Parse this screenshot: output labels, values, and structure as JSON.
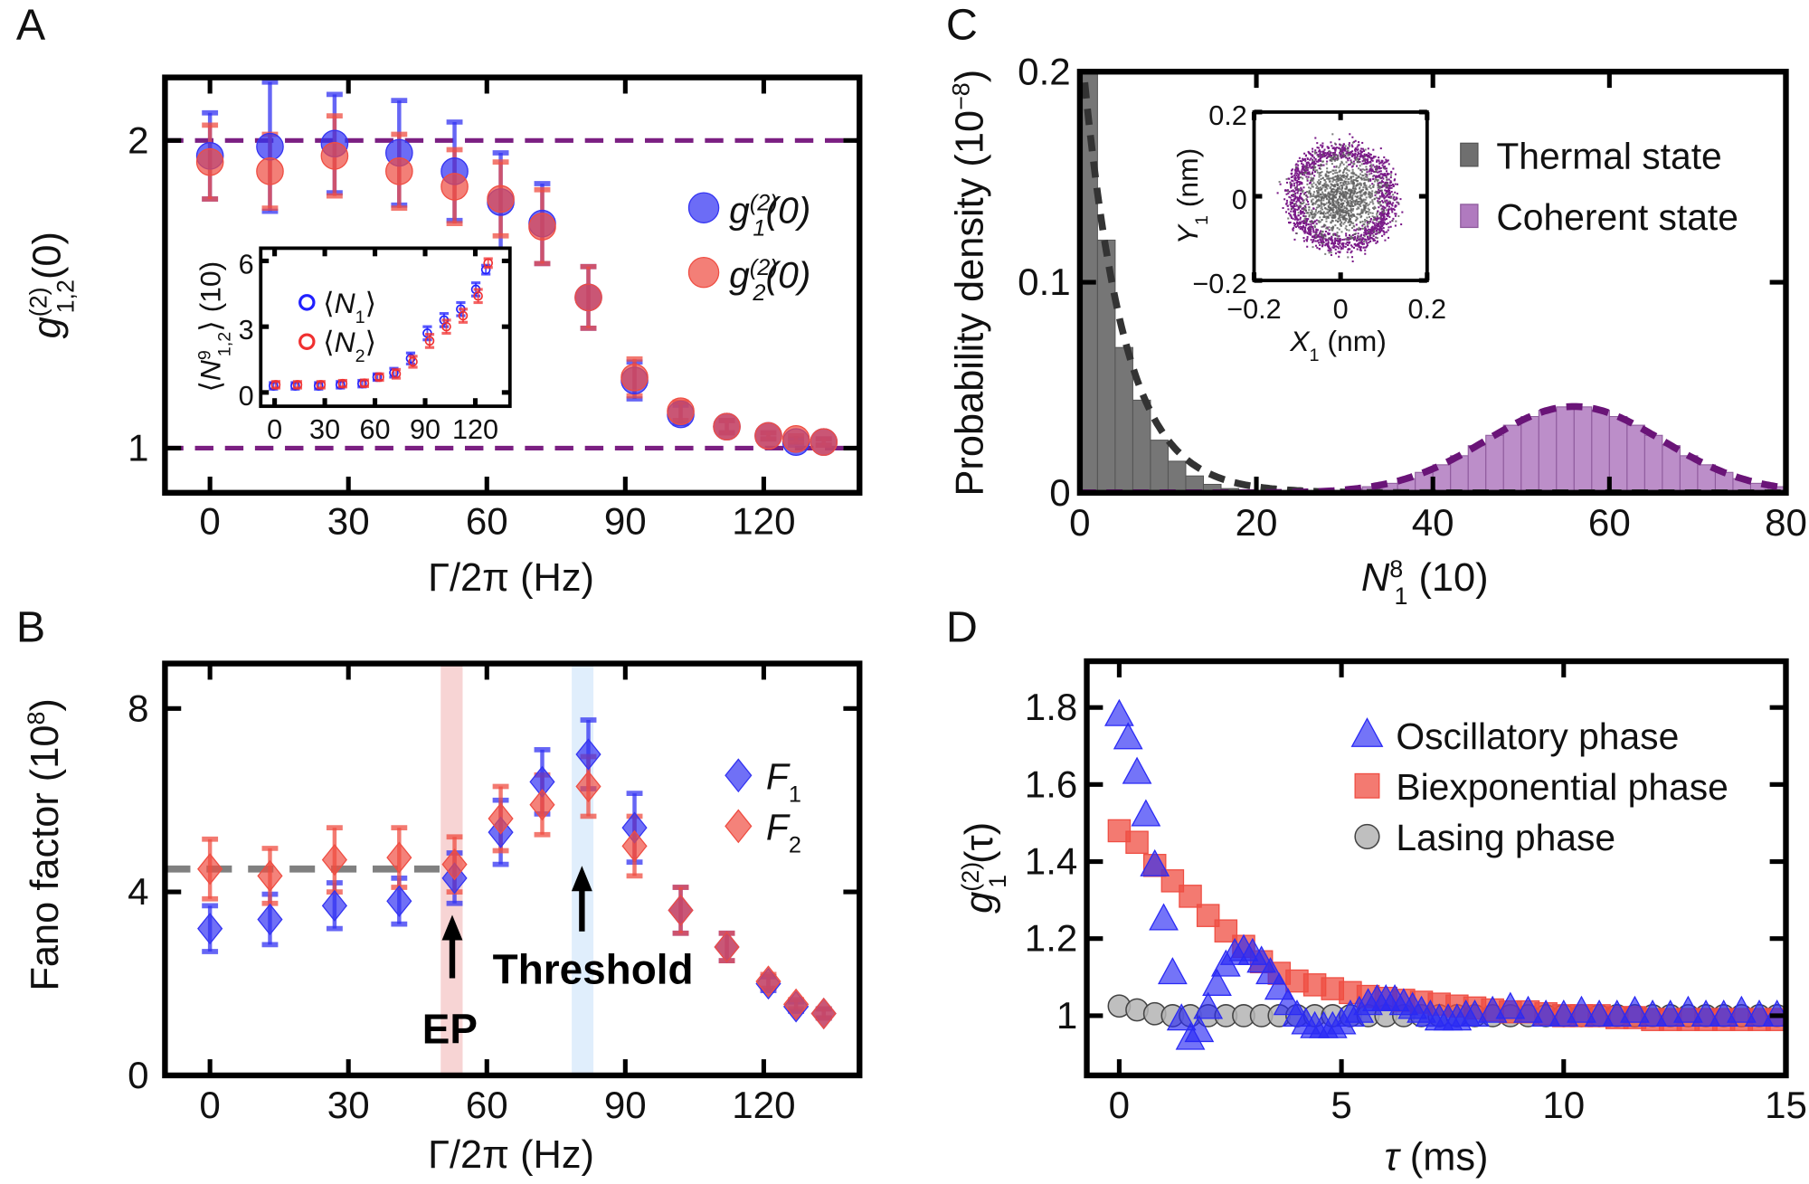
{
  "panels": {
    "A": {
      "letter": "A"
    },
    "B": {
      "letter": "B"
    },
    "C": {
      "letter": "C"
    },
    "D": {
      "letter": "D"
    }
  },
  "chart_data": [
    {
      "id": "A",
      "type": "scatter",
      "xlabel": {
        "text": "Γ/2π (Hz)"
      },
      "ylabel": {
        "base": "g",
        "sup": "(2)",
        "sub": "1,2",
        "rest": "(0)"
      },
      "xlim": [
        -9.75,
        140.75
      ],
      "ylim": [
        0.855,
        2.205
      ],
      "xticks": [
        "0",
        "30",
        "60",
        "90",
        "120"
      ],
      "yticks": [
        "1",
        "2"
      ],
      "reference_lines": [
        {
          "y": 2,
          "color": "#7b1f82",
          "style": "dashed"
        },
        {
          "y": 1,
          "color": "#7b1f82",
          "style": "dashed"
        }
      ],
      "x": [
        0,
        13,
        27,
        41,
        53,
        63,
        72,
        82,
        92,
        102,
        112,
        121,
        127,
        133
      ],
      "series": [
        {
          "name": {
            "base": "g",
            "sup": "(2)",
            "sub": "1",
            "rest": "(0)"
          },
          "color": "#3333f2",
          "values": [
            1.95,
            1.98,
            1.99,
            1.96,
            1.9,
            1.8,
            1.73,
            1.49,
            1.22,
            1.11,
            1.07,
            1.04,
            1.02,
            1.02
          ],
          "errors": [
            0.14,
            0.21,
            0.16,
            0.17,
            0.16,
            0.16,
            0.13,
            0.1,
            0.06,
            0.03,
            0.02,
            0.01,
            0.01,
            0.01
          ]
        },
        {
          "name": {
            "base": "g",
            "sup": "(2)",
            "sub": "2",
            "rest": "(0)"
          },
          "color": "#ef4d42",
          "values": [
            1.93,
            1.9,
            1.95,
            1.9,
            1.85,
            1.81,
            1.72,
            1.49,
            1.23,
            1.12,
            1.07,
            1.04,
            1.03,
            1.02
          ],
          "errors": [
            0.12,
            0.12,
            0.13,
            0.12,
            0.12,
            0.12,
            0.12,
            0.1,
            0.06,
            0.03,
            0.02,
            0.01,
            0.01,
            0.01
          ]
        }
      ],
      "legend": "right",
      "inset": {
        "type": "scatter",
        "xlim": [
          -8.3,
          140.7
        ],
        "ylim": [
          -0.63,
          6.58
        ],
        "xticks": [
          "0",
          "30",
          "60",
          "90",
          "120"
        ],
        "yticks": [
          "0",
          "3",
          "6"
        ],
        "ylabel": {
          "pre": "⟨",
          "base": "N",
          "sub": "1,2",
          "rest": "⟩ (10",
          "sup": "9",
          "post": ")"
        },
        "x": [
          0,
          13,
          27,
          40,
          53,
          62,
          72,
          82,
          92,
          102,
          112,
          121,
          127
        ],
        "series": [
          {
            "name": {
              "pre": "⟨",
              "base": "N",
              "sub": "1",
              "post": "⟩"
            },
            "color": "#2020ff",
            "values": [
              0.3,
              0.3,
              0.3,
              0.35,
              0.4,
              0.7,
              0.9,
              1.55,
              2.7,
              3.3,
              3.8,
              4.7,
              5.6
            ],
            "errors": [
              0.15,
              0.15,
              0.15,
              0.15,
              0.15,
              0.15,
              0.2,
              0.25,
              0.3,
              0.3,
              0.3,
              0.3,
              0.2
            ]
          },
          {
            "name": {
              "pre": "⟨",
              "base": "N",
              "sub": "2",
              "post": "⟩"
            },
            "color": "#f03030",
            "values": [
              0.35,
              0.35,
              0.35,
              0.4,
              0.42,
              0.7,
              0.85,
              1.4,
              2.35,
              3.0,
              3.5,
              4.4,
              5.9
            ],
            "errors": [
              0.15,
              0.15,
              0.15,
              0.15,
              0.15,
              0.15,
              0.2,
              0.25,
              0.3,
              0.3,
              0.3,
              0.3,
              0.2
            ]
          }
        ]
      }
    },
    {
      "id": "B",
      "type": "scatter",
      "xlabel": {
        "text": "Γ/2π (Hz)"
      },
      "ylabel": {
        "text": "Fano factor (10",
        "sup": "8",
        "post": ")"
      },
      "xlim": [
        -9.75,
        140.75
      ],
      "ylim": [
        0,
        8.98
      ],
      "xticks": [
        "0",
        "30",
        "60",
        "90",
        "120"
      ],
      "yticks": [
        "0",
        "4",
        "8"
      ],
      "x": [
        0,
        13,
        27,
        41,
        53,
        63,
        72,
        82,
        92,
        102,
        112,
        121,
        127,
        133
      ],
      "series": [
        {
          "name": {
            "base": "F",
            "sub": "1"
          },
          "color": "#3333f2",
          "values": [
            3.2,
            3.4,
            3.7,
            3.8,
            4.3,
            5.3,
            6.4,
            7.0,
            5.4,
            3.6,
            2.8,
            2.0,
            1.5,
            1.35
          ],
          "errors": [
            0.5,
            0.55,
            0.5,
            0.5,
            0.55,
            0.7,
            0.7,
            0.75,
            0.75,
            0.5,
            0.3,
            0.15,
            0.1,
            0.1
          ]
        },
        {
          "name": {
            "base": "F",
            "sub": "2"
          },
          "color": "#ef4d42",
          "values": [
            4.5,
            4.35,
            4.7,
            4.75,
            4.6,
            5.6,
            5.9,
            6.3,
            5.0,
            3.6,
            2.8,
            2.05,
            1.55,
            1.35
          ],
          "errors": [
            0.65,
            0.6,
            0.7,
            0.65,
            0.6,
            0.7,
            0.65,
            0.65,
            0.65,
            0.5,
            0.3,
            0.15,
            0.1,
            0.1
          ]
        }
      ],
      "reference_line": {
        "y": 4.5,
        "x_range": [
          -9.75,
          53
        ],
        "color": "#808080",
        "style": "dashed"
      },
      "bands": [
        {
          "x_range": [
            50,
            54.75
          ],
          "color": "#f4c6c6"
        },
        {
          "x_range": [
            78.4,
            83.1
          ],
          "color": "#d6e8fb"
        }
      ],
      "annotations": [
        {
          "text": "EP",
          "x": 52,
          "y": 0.7,
          "arrow_x": 52.5,
          "arrow_from": 2.12,
          "arrow_to": 3.5
        },
        {
          "text": "Threshold",
          "x": 83,
          "y": 2.0,
          "arrow_x": 80.6,
          "arrow_from": 3.14,
          "arrow_to": 4.57
        }
      ],
      "legend": "right"
    },
    {
      "id": "C",
      "type": "bar",
      "xlabel": {
        "base": "N",
        "sub": "1",
        "rest": " (10",
        "sup": "8",
        "post": ")"
      },
      "ylabel": {
        "text": "Probability density (10",
        "sup": "−8",
        "post": ")"
      },
      "xlim": [
        0,
        80
      ],
      "ylim": [
        0,
        0.2
      ],
      "xticks": [
        "0",
        "20",
        "40",
        "60",
        "80"
      ],
      "yticks": [
        "0",
        "0.1",
        "0.2"
      ],
      "bin_width": 2,
      "series": [
        {
          "name": "Thermal state",
          "color": "#6f6f6f",
          "fit_color": "#333333",
          "bin_starts": [
            0,
            2,
            4,
            6,
            8,
            10,
            12,
            14,
            16,
            18
          ],
          "values": [
            0.21,
            0.12,
            0.069,
            0.044,
            0.025,
            0.015,
            0.008,
            0.004,
            0.002,
            0.001
          ],
          "fit": {
            "type": "exponential",
            "amplitude": 0.22,
            "scale": 4.6
          }
        },
        {
          "name": "Coherent state",
          "color": "#b07abf",
          "fit_color": "#6a1478",
          "bin_starts": [
            22,
            24,
            26,
            28,
            30,
            32,
            34,
            36,
            38,
            40,
            42,
            44,
            46,
            48,
            50,
            52,
            54,
            56,
            58,
            60,
            62,
            64,
            66,
            68,
            70,
            72,
            74,
            76,
            78
          ],
          "values": [
            0.0002,
            0.0003,
            0.0006,
            0.0011,
            0.0018,
            0.0029,
            0.0045,
            0.0067,
            0.0097,
            0.0133,
            0.0176,
            0.0224,
            0.0273,
            0.0321,
            0.0362,
            0.0392,
            0.0408,
            0.0408,
            0.0392,
            0.0362,
            0.0321,
            0.0273,
            0.0224,
            0.0176,
            0.0133,
            0.0097,
            0.0067,
            0.0045,
            0.0029
          ],
          "fit": {
            "type": "gaussian",
            "amplitude": 0.041,
            "mean": 56,
            "sigma": 10
          }
        }
      ],
      "legend": "top-right",
      "inset": {
        "type": "scatter",
        "xlim": [
          -0.2,
          0.2
        ],
        "ylim": [
          -0.2,
          0.2
        ],
        "xticks": [
          "−0.2",
          "0",
          "0.2"
        ],
        "yticks": [
          "−0.2",
          "0",
          "0.2"
        ],
        "xlabel": {
          "base": "X",
          "sub": "1",
          "rest": " (nm)"
        },
        "ylabel": {
          "base": "Y",
          "sub": "1",
          "rest": " (nm)"
        },
        "thermal": {
          "color": "#5f5f5f",
          "sigma": 0.045
        },
        "coherent": {
          "color": "#7a1a88",
          "radius": 0.11,
          "spread": 0.013
        }
      }
    },
    {
      "id": "D",
      "type": "scatter",
      "xlabel": {
        "base": "τ",
        "rest": " (ms)"
      },
      "ylabel": {
        "base": "g",
        "sup": "(2)",
        "sub": "1",
        "rest": " (τ)"
      },
      "xlim": [
        -0.73,
        15
      ],
      "ylim": [
        0.845,
        1.92
      ],
      "xticks": [
        "0",
        "5",
        "10",
        "15"
      ],
      "yticks": [
        "1",
        "1.2",
        "1.4",
        "1.6",
        "1.8"
      ],
      "series": [
        {
          "name": "Lasing phase",
          "marker": "circle",
          "color": "#b4b4b4",
          "x": [
            0,
            0.4,
            0.8,
            1.2,
            1.6,
            2.0,
            2.4,
            2.8,
            3.2,
            3.6,
            4.0,
            4.4,
            4.8,
            5.2,
            5.6,
            6.0,
            6.4,
            6.8,
            7.2,
            7.6,
            8.0,
            8.4,
            8.8,
            9.2,
            9.6,
            10.0,
            10.4,
            10.8,
            11.2,
            11.6,
            12.0,
            12.4,
            12.8,
            13.2,
            13.6,
            14.0,
            14.4,
            14.8
          ],
          "values": [
            1.025,
            1.015,
            1.005,
            1.0,
            1.0,
            1.0,
            1.0,
            1.0,
            1.0,
            1.0,
            1.0,
            1.0,
            1.0,
            1.0,
            1.0,
            1.0,
            1.0,
            1.0,
            1.0,
            1.0,
            1.0,
            1.0,
            1.0,
            1.0,
            1.0,
            1.0,
            1.0,
            1.0,
            1.0,
            1.0,
            1.0,
            1.0,
            1.0,
            1.0,
            1.0,
            1.0,
            1.0,
            1.0
          ]
        },
        {
          "name": "Biexponential phase",
          "marker": "square",
          "color": "#ef4d42",
          "x": [
            0,
            0.4,
            0.8,
            1.2,
            1.6,
            2.0,
            2.4,
            2.8,
            3.2,
            3.6,
            4.0,
            4.4,
            4.8,
            5.2,
            5.6,
            6.0,
            6.4,
            6.8,
            7.2,
            7.6,
            8.0,
            8.4,
            8.8,
            9.2,
            9.6,
            10.0,
            10.4,
            10.8,
            11.2,
            11.6,
            12.0,
            12.4,
            12.8,
            13.2,
            13.6,
            14.0,
            14.4,
            14.8
          ],
          "values": [
            1.48,
            1.45,
            1.39,
            1.35,
            1.31,
            1.26,
            1.22,
            1.18,
            1.14,
            1.11,
            1.09,
            1.08,
            1.07,
            1.06,
            1.05,
            1.045,
            1.04,
            1.035,
            1.03,
            1.025,
            1.02,
            1.015,
            1.01,
            1.01,
            1.005,
            1.0,
            1.0,
            1.0,
            0.995,
            0.995,
            0.99,
            0.99,
            0.99,
            0.99,
            0.99,
            0.99,
            0.99,
            0.99
          ]
        },
        {
          "name": "Oscillatory phase",
          "marker": "triangle",
          "color": "#2a2af5",
          "x": [
            0,
            0.2,
            0.4,
            0.6,
            0.8,
            1.0,
            1.2,
            1.4,
            1.6,
            1.8,
            2.0,
            2.2,
            2.4,
            2.6,
            2.8,
            3.0,
            3.2,
            3.4,
            3.6,
            3.8,
            4.0,
            4.2,
            4.4,
            4.6,
            4.8,
            5.0,
            5.2,
            5.4,
            5.6,
            5.8,
            6.0,
            6.2,
            6.4,
            6.6,
            6.8,
            7.0,
            7.2,
            7.4,
            7.6,
            7.8,
            8.0,
            8.4,
            8.8,
            9.2,
            9.6,
            10.0,
            10.4,
            10.8,
            11.2,
            11.6,
            12.0,
            12.4,
            12.8,
            13.2,
            13.6,
            14.0,
            14.4,
            14.8
          ],
          "values": [
            1.78,
            1.72,
            1.63,
            1.52,
            1.39,
            1.25,
            1.11,
            0.99,
            0.94,
            0.96,
            1.02,
            1.08,
            1.13,
            1.16,
            1.17,
            1.16,
            1.14,
            1.11,
            1.07,
            1.03,
            1.0,
            0.98,
            0.97,
            0.97,
            0.97,
            0.98,
            1.0,
            1.01,
            1.03,
            1.04,
            1.04,
            1.04,
            1.03,
            1.02,
            1.01,
            1.0,
            0.99,
            0.99,
            0.99,
            1.0,
            1.0,
            1.01,
            1.02,
            1.01,
            1.0,
            1.0,
            1.01,
            1.0,
            1.0,
            1.01,
            1.0,
            1.0,
            1.01,
            1.0,
            1.0,
            1.01,
            1.0,
            1.0
          ]
        }
      ],
      "legend": "top-right"
    }
  ]
}
